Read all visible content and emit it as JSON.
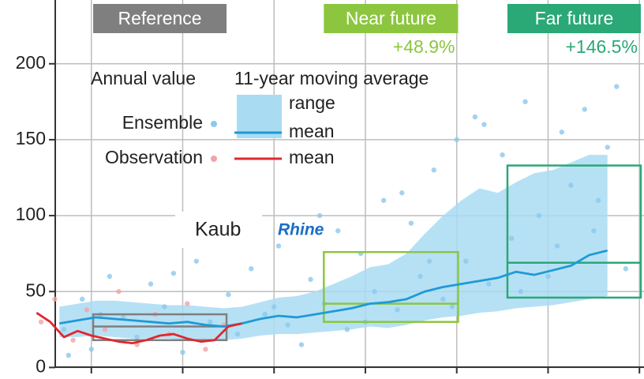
{
  "chart_data": {
    "type": "line",
    "ylim": [
      -5,
      242
    ],
    "yticks": [
      0,
      50,
      100,
      150,
      200
    ],
    "xlim": [
      0,
      141
    ],
    "xgrid": [
      20,
      40,
      60,
      80,
      100,
      120,
      140
    ],
    "grid": true,
    "legend": {
      "columns": [
        "Annual value",
        "11-year moving average"
      ],
      "rows": [
        "Ensemble",
        "Observation"
      ]
    },
    "annotations": [
      "Kaub",
      "Rhine"
    ],
    "periods": [
      {
        "name": "Reference",
        "color": "#7f7f7f",
        "xlim": [
          20.4,
          49.6
        ],
        "ylim": [
          18,
          35
        ],
        "mean": 27
      },
      {
        "name": "Near future",
        "change": "+48.9%",
        "color": "#8cc63f",
        "xlim": [
          70.9,
          100.3
        ],
        "ylim": [
          30,
          76
        ],
        "mean": 42
      },
      {
        "name": "Far future",
        "change": "+146.5%",
        "color": "#2aa876",
        "xlim": [
          111.1,
          140.3
        ],
        "ylim": [
          46,
          133
        ],
        "mean": 69
      }
    ],
    "points": [
      {
        "color": "#8cc8ec",
        "x": [
          14,
          18,
          20,
          24,
          27,
          30,
          33,
          36,
          40,
          43,
          46,
          50,
          52,
          55,
          58,
          61,
          63,
          66,
          68,
          71,
          74,
          76,
          79,
          82,
          84,
          87,
          90,
          92,
          95,
          97,
          100,
          102,
          104,
          107,
          110,
          112,
          115,
          118,
          120,
          123,
          125,
          128,
          130,
          133,
          135,
          15,
          22,
          38,
          48,
          60,
          70,
          80,
          88,
          94,
          99,
          106,
          114,
          122,
          131,
          137
        ],
        "y": [
          25,
          45,
          12,
          60,
          33,
          20,
          55,
          40,
          10,
          70,
          30,
          48,
          22,
          65,
          35,
          80,
          28,
          15,
          58,
          42,
          90,
          25,
          75,
          50,
          110,
          38,
          95,
          60,
          130,
          45,
          150,
          70,
          165,
          55,
          140,
          85,
          175,
          100,
          60,
          155,
          120,
          170,
          90,
          145,
          185,
          8,
          35,
          62,
          85,
          40,
          100,
          30,
          115,
          70,
          40,
          160,
          50,
          80,
          110,
          65
        ]
      },
      {
        "color": "#f4a3a6",
        "x": [
          9,
          12,
          16,
          19,
          23,
          26,
          30,
          34,
          37,
          41,
          45,
          49
        ],
        "y": [
          30,
          45,
          18,
          38,
          25,
          50,
          15,
          35,
          22,
          42,
          12,
          28
        ]
      }
    ],
    "series": [
      {
        "name": "range",
        "color": "#a9dcf3",
        "x": [
          13,
          17,
          21,
          25,
          29,
          33,
          37,
          41,
          45,
          49,
          53,
          57,
          61,
          65,
          69,
          73,
          77,
          81,
          85,
          89,
          93,
          97,
          101,
          105,
          109,
          113,
          117,
          121,
          125,
          129,
          133
        ],
        "lower": [
          20,
          20,
          21,
          20,
          19,
          19,
          19,
          18,
          18,
          18,
          19,
          21,
          22,
          22,
          23,
          24,
          25,
          27,
          26,
          28,
          31,
          33,
          34,
          36,
          37,
          39,
          40,
          41,
          43,
          45,
          47
        ],
        "upper": [
          40,
          42,
          44,
          44,
          43,
          42,
          41,
          41,
          40,
          39,
          40,
          43,
          46,
          47,
          50,
          55,
          60,
          66,
          68,
          75,
          88,
          100,
          110,
          118,
          115,
          122,
          128,
          130,
          135,
          140,
          140
        ]
      },
      {
        "name": "mean",
        "color": "#1e9ad6",
        "x": [
          13,
          17,
          21,
          25,
          29,
          33,
          37,
          41,
          45,
          49,
          53,
          57,
          61,
          65,
          69,
          73,
          77,
          81,
          85,
          89,
          93,
          97,
          101,
          105,
          109,
          113,
          117,
          121,
          125,
          129,
          133
        ],
        "values": [
          29,
          31,
          33,
          32,
          31,
          30,
          29,
          30,
          28,
          27,
          29,
          32,
          34,
          33,
          35,
          37,
          39,
          42,
          43,
          45,
          50,
          53,
          55,
          57,
          59,
          63,
          61,
          64,
          67,
          74,
          77
        ]
      },
      {
        "name": "mean",
        "color": "#e0282e",
        "x": [
          8,
          11,
          14,
          17,
          20,
          23,
          26,
          29,
          32,
          35,
          38,
          41,
          44,
          47,
          50,
          53
        ],
        "values": [
          36,
          30,
          20,
          24,
          21,
          19,
          17,
          16,
          18,
          21,
          22,
          19,
          17,
          18,
          27,
          29
        ]
      }
    ]
  }
}
